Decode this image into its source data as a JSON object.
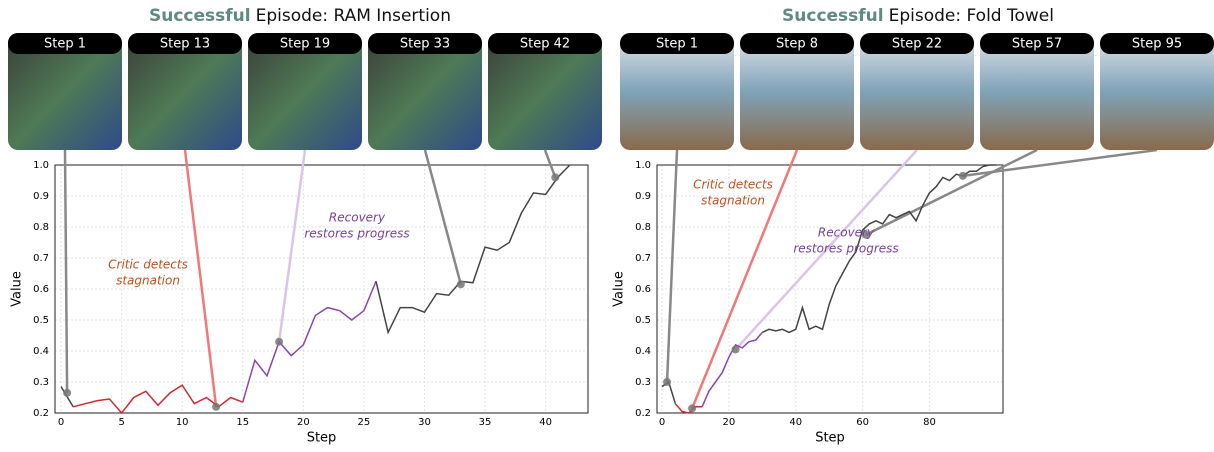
{
  "chart_data": [
    {
      "type": "line",
      "title_highlight": "Successful",
      "title": "Episode: RAM Insertion",
      "x_label": "Step",
      "y_label": "Value",
      "xlim": [
        -0.5,
        43.5
      ],
      "xticks": [
        0,
        5,
        10,
        15,
        20,
        25,
        30,
        35,
        40
      ],
      "ylim": [
        0.2,
        1.0
      ],
      "yticks": [
        0.2,
        0.3,
        0.4,
        0.5,
        0.6,
        0.7,
        0.8,
        0.9,
        {
          "value": 1,
          "label": "1.0"
        }
      ],
      "grid": true,
      "series": [
        {
          "color": "#444444",
          "x": [
            0,
            1
          ],
          "values": [
            0.285,
            0.22
          ]
        },
        {
          "color": "#d62728",
          "x": [
            1,
            2,
            3,
            4,
            5,
            6,
            7,
            8,
            9,
            10,
            11,
            12,
            13,
            14,
            15
          ],
          "values": [
            0.22,
            0.23,
            0.24,
            0.245,
            0.2,
            0.25,
            0.27,
            0.225,
            0.265,
            0.29,
            0.23,
            0.25,
            0.22,
            0.25,
            0.235
          ]
        },
        {
          "color": "#8e44ad",
          "x": [
            15,
            16,
            17,
            18,
            19,
            20,
            21,
            22,
            23,
            24,
            25,
            26
          ],
          "values": [
            0.235,
            0.37,
            0.32,
            0.43,
            0.385,
            0.42,
            0.515,
            0.54,
            0.53,
            0.5,
            0.53,
            0.625
          ]
        },
        {
          "color": "#444444",
          "x": [
            26,
            27,
            28,
            29,
            30,
            31,
            32,
            33,
            34,
            35,
            36,
            37,
            38,
            39,
            40,
            41,
            42
          ],
          "values": [
            0.625,
            0.46,
            0.54,
            0.54,
            0.525,
            0.585,
            0.58,
            0.625,
            0.62,
            0.735,
            0.725,
            0.75,
            0.845,
            0.91,
            0.905,
            0.96,
            1.0
          ]
        }
      ],
      "frames": [
        {
          "label": "Step 1",
          "x": 0.5,
          "y": 0.265,
          "color": "#888888"
        },
        {
          "label": "Step 13",
          "x": 12.8,
          "y": 0.22,
          "color": "#f07878"
        },
        {
          "label": "Step 19",
          "x": 18,
          "y": 0.43,
          "color": "#d9c4ec"
        },
        {
          "label": "Step 33",
          "x": 33,
          "y": 0.615,
          "color": "#888888"
        },
        {
          "label": "Step 42",
          "x": 40.8,
          "y": 0.96,
          "color": "#888888"
        }
      ],
      "annotations": [
        {
          "lines": [
            "Critic detects",
            "stagnation"
          ],
          "color": "#c0501f"
        },
        {
          "lines": [
            "Recovery",
            "restores progress"
          ],
          "color": "#7a3fa0"
        }
      ]
    },
    {
      "type": "line",
      "title_highlight": "Successful",
      "title": "Episode: Fold Towel",
      "x_label": "Step",
      "y_label": "Value",
      "xlim": [
        -1.5,
        102
      ],
      "xticks": [
        0,
        20,
        40,
        60,
        80
      ],
      "ylim": [
        0.2,
        1.0
      ],
      "yticks": [
        0.2,
        0.3,
        0.4,
        0.5,
        0.6,
        0.7,
        0.8,
        0.9,
        {
          "value": 1,
          "label": "1.0"
        }
      ],
      "grid": true,
      "series": [
        {
          "color": "#444444",
          "x": [
            0,
            2,
            4
          ],
          "values": [
            0.285,
            0.3,
            0.23
          ]
        },
        {
          "color": "#d62728",
          "x": [
            4,
            6,
            8,
            10,
            12
          ],
          "values": [
            0.23,
            0.205,
            0.2,
            0.22,
            0.22
          ]
        },
        {
          "color": "#8e44ad",
          "x": [
            12,
            14,
            16,
            18,
            20,
            22,
            24,
            26,
            28,
            30
          ],
          "values": [
            0.22,
            0.27,
            0.3,
            0.33,
            0.38,
            0.42,
            0.41,
            0.43,
            0.435,
            0.46
          ]
        },
        {
          "color": "#444444",
          "x": [
            30,
            32,
            34,
            36,
            38,
            40,
            42,
            44,
            46,
            48,
            50,
            52,
            54,
            56,
            58,
            60,
            62,
            64,
            66,
            68,
            70,
            72,
            74,
            76,
            78,
            80,
            82,
            84,
            86,
            88,
            90,
            92,
            94,
            96,
            98,
            100
          ],
          "values": [
            0.46,
            0.47,
            0.465,
            0.47,
            0.46,
            0.47,
            0.54,
            0.47,
            0.48,
            0.47,
            0.55,
            0.61,
            0.65,
            0.69,
            0.72,
            0.79,
            0.81,
            0.82,
            0.81,
            0.84,
            0.83,
            0.84,
            0.85,
            0.82,
            0.87,
            0.91,
            0.93,
            0.96,
            0.95,
            0.97,
            0.965,
            0.98,
            0.98,
            0.995,
            1.0,
            1.0
          ]
        }
      ],
      "frames": [
        {
          "label": "Step 1",
          "x": 1.5,
          "y": 0.3,
          "color": "#888888"
        },
        {
          "label": "Step 8",
          "x": 9,
          "y": 0.215,
          "color": "#f07878"
        },
        {
          "label": "Step 22",
          "x": 22,
          "y": 0.405,
          "color": "#d9c4ec"
        },
        {
          "label": "Step 57",
          "x": 61,
          "y": 0.775,
          "color": "#888888"
        },
        {
          "label": "Step 95",
          "x": 90,
          "y": 0.965,
          "color": "#888888"
        }
      ],
      "annotations": [
        {
          "lines": [
            "Critic detects",
            "stagnation"
          ],
          "color": "#c0501f"
        },
        {
          "lines": [
            "Recovery",
            "restores progress"
          ],
          "color": "#7a3fa0"
        }
      ]
    }
  ]
}
